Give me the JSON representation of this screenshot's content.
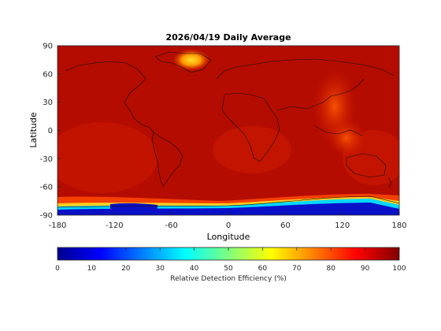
{
  "title": "2026/04/19 Daily Average",
  "map": {
    "xlabel": "Longitude",
    "ylabel": "Latitude",
    "xlim": [
      -180,
      180
    ],
    "ylim": [
      -90,
      90
    ],
    "x_ticks": [
      "-180",
      "-120",
      "-60",
      "0",
      "60",
      "120",
      "180"
    ],
    "y_ticks": [
      "90",
      "60",
      "30",
      "0",
      "-30",
      "-60",
      "-90"
    ],
    "colors": {
      "background": "#b50b00",
      "low_band": "#0a10c8",
      "mid_band": "#00c8ff",
      "warm_patch": "#ff4a00",
      "greenland_patch": "#ffd21e"
    }
  },
  "colorbar": {
    "label": "Relative Detection Efficiency (%)",
    "ticks": [
      "0",
      "10",
      "20",
      "30",
      "40",
      "50",
      "60",
      "70",
      "80",
      "90",
      "100"
    ],
    "range": [
      0,
      100
    ],
    "colormap": "jet"
  }
}
